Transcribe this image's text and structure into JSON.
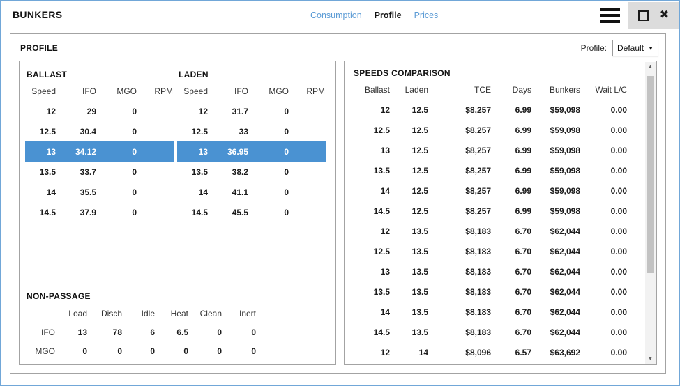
{
  "window": {
    "title": "BUNKERS"
  },
  "tabs": [
    {
      "label": "Consumption",
      "active": false
    },
    {
      "label": "Profile",
      "active": true
    },
    {
      "label": "Prices",
      "active": false
    }
  ],
  "profile_panel": {
    "title": "PROFILE",
    "profile_label": "Profile:",
    "profile_value": "Default"
  },
  "ballast": {
    "title": "BALLAST",
    "headers": [
      "Speed",
      "IFO",
      "MGO",
      "RPM"
    ],
    "rows": [
      {
        "cells": [
          "12",
          "29",
          "0",
          ""
        ],
        "selected": false
      },
      {
        "cells": [
          "12.5",
          "30.4",
          "0",
          ""
        ],
        "selected": false
      },
      {
        "cells": [
          "13",
          "34.12",
          "0",
          ""
        ],
        "selected": true
      },
      {
        "cells": [
          "13.5",
          "33.7",
          "0",
          ""
        ],
        "selected": false
      },
      {
        "cells": [
          "14",
          "35.5",
          "0",
          ""
        ],
        "selected": false
      },
      {
        "cells": [
          "14.5",
          "37.9",
          "0",
          ""
        ],
        "selected": false
      }
    ]
  },
  "laden": {
    "title": "LADEN",
    "headers": [
      "Speed",
      "IFO",
      "MGO",
      "RPM"
    ],
    "rows": [
      {
        "cells": [
          "12",
          "31.7",
          "0",
          ""
        ],
        "selected": false
      },
      {
        "cells": [
          "12.5",
          "33",
          "0",
          ""
        ],
        "selected": false
      },
      {
        "cells": [
          "13",
          "36.95",
          "0",
          ""
        ],
        "selected": true
      },
      {
        "cells": [
          "13.5",
          "38.2",
          "0",
          ""
        ],
        "selected": false
      },
      {
        "cells": [
          "14",
          "41.1",
          "0",
          ""
        ],
        "selected": false
      },
      {
        "cells": [
          "14.5",
          "45.5",
          "0",
          ""
        ],
        "selected": false
      }
    ]
  },
  "non_passage": {
    "title": "NON-PASSAGE",
    "headers": [
      "",
      "Load",
      "Disch",
      "Idle",
      "Heat",
      "Clean",
      "Inert"
    ],
    "rows": [
      {
        "label": "IFO",
        "cells": [
          "13",
          "78",
          "6",
          "6.5",
          "0",
          "0"
        ],
        "selected": false
      },
      {
        "label": "MGO",
        "cells": [
          "0",
          "0",
          "0",
          "0",
          "0",
          "0"
        ],
        "selected": false
      }
    ]
  },
  "speeds_comparison": {
    "title": "SPEEDS COMPARISON",
    "headers": [
      "Ballast",
      "Laden",
      "TCE",
      "Days",
      "Bunkers",
      "Wait L/C"
    ],
    "rows": [
      {
        "cells": [
          "12",
          "12.5",
          "$8,257",
          "6.99",
          "$59,098",
          "0.00"
        ],
        "selected": false
      },
      {
        "cells": [
          "12.5",
          "12.5",
          "$8,257",
          "6.99",
          "$59,098",
          "0.00"
        ],
        "selected": false
      },
      {
        "cells": [
          "13",
          "12.5",
          "$8,257",
          "6.99",
          "$59,098",
          "0.00"
        ],
        "selected": false
      },
      {
        "cells": [
          "13.5",
          "12.5",
          "$8,257",
          "6.99",
          "$59,098",
          "0.00"
        ],
        "selected": false
      },
      {
        "cells": [
          "14",
          "12.5",
          "$8,257",
          "6.99",
          "$59,098",
          "0.00"
        ],
        "selected": false
      },
      {
        "cells": [
          "14.5",
          "12.5",
          "$8,257",
          "6.99",
          "$59,098",
          "0.00"
        ],
        "selected": false
      },
      {
        "cells": [
          "12",
          "13.5",
          "$8,183",
          "6.70",
          "$62,044",
          "0.00"
        ],
        "selected": false
      },
      {
        "cells": [
          "12.5",
          "13.5",
          "$8,183",
          "6.70",
          "$62,044",
          "0.00"
        ],
        "selected": false
      },
      {
        "cells": [
          "13",
          "13.5",
          "$8,183",
          "6.70",
          "$62,044",
          "0.00"
        ],
        "selected": false
      },
      {
        "cells": [
          "13.5",
          "13.5",
          "$8,183",
          "6.70",
          "$62,044",
          "0.00"
        ],
        "selected": false
      },
      {
        "cells": [
          "14",
          "13.5",
          "$8,183",
          "6.70",
          "$62,044",
          "0.00"
        ],
        "selected": false
      },
      {
        "cells": [
          "14.5",
          "13.5",
          "$8,183",
          "6.70",
          "$62,044",
          "0.00"
        ],
        "selected": false
      },
      {
        "cells": [
          "12",
          "14",
          "$8,096",
          "6.57",
          "$63,692",
          "0.00"
        ],
        "selected": false
      }
    ]
  },
  "icons": {
    "dropdown_arrow": "▼",
    "scroll_up": "▲",
    "scroll_down": "▼",
    "close": "✖"
  },
  "colors": {
    "accent": "#4a92d2",
    "tab_link": "#5b9bd5",
    "window_border": "#71a7d8"
  }
}
